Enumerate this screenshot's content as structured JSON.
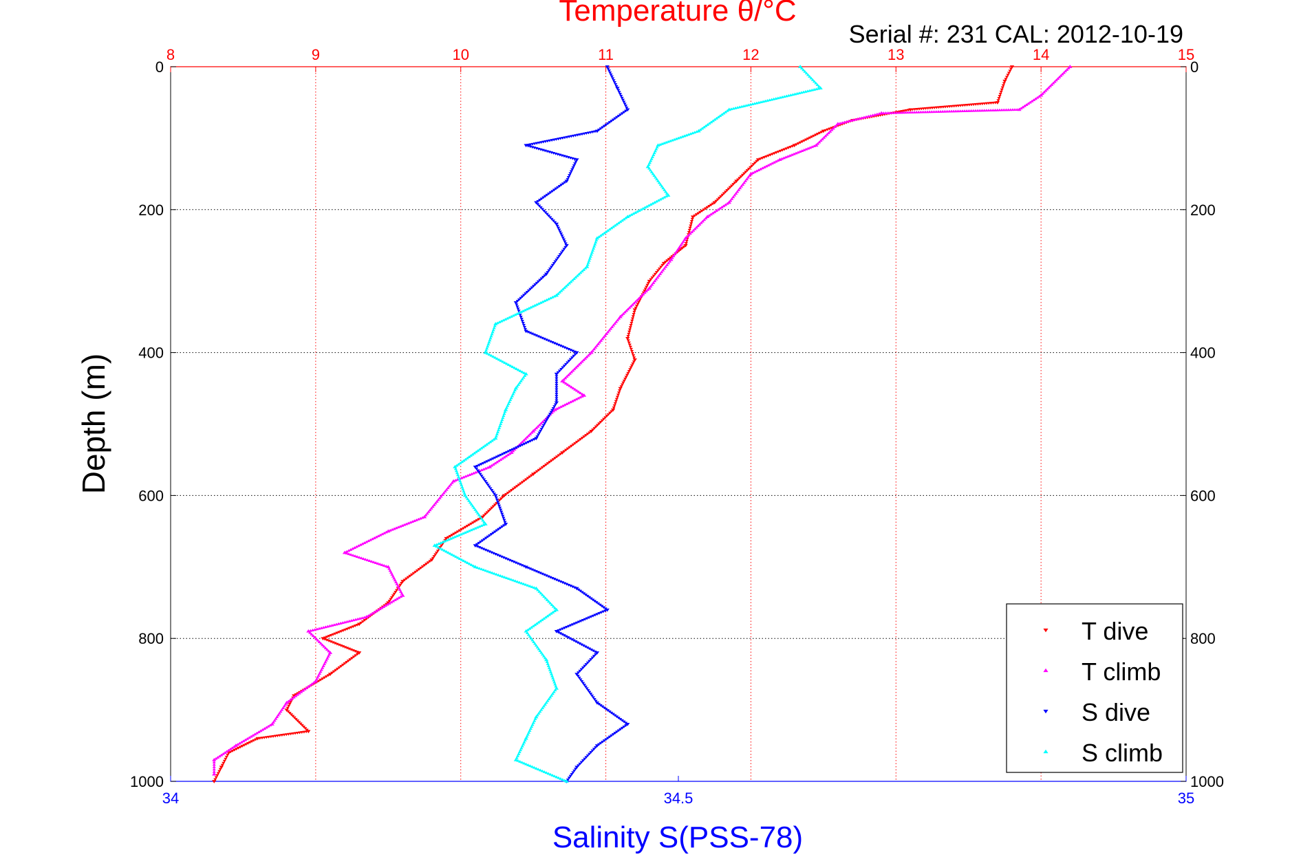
{
  "chart_data": {
    "type": "scatter",
    "title": "Temperature θ/°C",
    "subtitle": "Serial #: 231   CAL: 2012-10-19",
    "ylabel": "Depth (m)",
    "xlabel": "Salinity S(PSS-78)",
    "ylim": [
      0,
      1000
    ],
    "y_reversed": true,
    "top_axis": {
      "label": "Temperature θ/°C",
      "range": [
        8,
        15
      ],
      "ticks": [
        "8",
        "9",
        "10",
        "11",
        "12",
        "13",
        "14",
        "15"
      ],
      "color": "#ff0000"
    },
    "bottom_axis": {
      "label": "Salinity S(PSS-78)",
      "range": [
        34,
        35
      ],
      "ticks": [
        "34",
        "34.5",
        "35"
      ],
      "color": "#0000ff"
    },
    "left_ticks": [
      "0",
      "200",
      "400",
      "600",
      "800",
      "1000"
    ],
    "right_ticks": [
      "0",
      "200",
      "400",
      "600",
      "800",
      "1000"
    ],
    "grid": true,
    "legend_position": "bottom-right",
    "series": [
      {
        "name": "T dive",
        "axis": "temperature",
        "color": "#ff0000",
        "marker": "triangle-down",
        "points": [
          [
            13.8,
            0
          ],
          [
            13.75,
            20
          ],
          [
            13.7,
            50
          ],
          [
            13.1,
            60
          ],
          [
            12.7,
            75
          ],
          [
            12.5,
            90
          ],
          [
            12.3,
            110
          ],
          [
            12.05,
            130
          ],
          [
            11.9,
            160
          ],
          [
            11.75,
            190
          ],
          [
            11.6,
            210
          ],
          [
            11.55,
            250
          ],
          [
            11.4,
            275
          ],
          [
            11.3,
            300
          ],
          [
            11.2,
            340
          ],
          [
            11.15,
            380
          ],
          [
            11.2,
            410
          ],
          [
            11.1,
            450
          ],
          [
            11.05,
            480
          ],
          [
            10.9,
            510
          ],
          [
            10.7,
            540
          ],
          [
            10.5,
            570
          ],
          [
            10.3,
            600
          ],
          [
            10.15,
            630
          ],
          [
            9.9,
            660
          ],
          [
            9.8,
            690
          ],
          [
            9.6,
            720
          ],
          [
            9.5,
            750
          ],
          [
            9.3,
            780
          ],
          [
            9.05,
            800
          ],
          [
            9.3,
            820
          ],
          [
            9.1,
            850
          ],
          [
            8.85,
            880
          ],
          [
            8.8,
            900
          ],
          [
            8.95,
            930
          ],
          [
            8.6,
            940
          ],
          [
            8.4,
            960
          ],
          [
            8.35,
            980
          ],
          [
            8.3,
            1000
          ]
        ]
      },
      {
        "name": "T climb",
        "axis": "temperature",
        "color": "#ff00ff",
        "marker": "triangle-up",
        "points": [
          [
            14.2,
            0
          ],
          [
            14.0,
            40
          ],
          [
            13.85,
            60
          ],
          [
            12.9,
            65
          ],
          [
            12.6,
            80
          ],
          [
            12.45,
            110
          ],
          [
            12.2,
            130
          ],
          [
            12.0,
            150
          ],
          [
            11.85,
            190
          ],
          [
            11.7,
            210
          ],
          [
            11.55,
            240
          ],
          [
            11.45,
            270
          ],
          [
            11.3,
            310
          ],
          [
            11.1,
            350
          ],
          [
            10.9,
            400
          ],
          [
            10.7,
            440
          ],
          [
            10.85,
            460
          ],
          [
            10.65,
            480
          ],
          [
            10.5,
            510
          ],
          [
            10.35,
            540
          ],
          [
            10.2,
            560
          ],
          [
            9.95,
            580
          ],
          [
            9.75,
            630
          ],
          [
            9.5,
            650
          ],
          [
            9.2,
            680
          ],
          [
            9.5,
            700
          ],
          [
            9.6,
            740
          ],
          [
            9.35,
            770
          ],
          [
            8.95,
            790
          ],
          [
            9.1,
            820
          ],
          [
            9.0,
            860
          ],
          [
            8.8,
            890
          ],
          [
            8.7,
            920
          ],
          [
            8.45,
            950
          ],
          [
            8.3,
            970
          ],
          [
            8.3,
            990
          ]
        ]
      },
      {
        "name": "S dive",
        "axis": "salinity",
        "color": "#0000ff",
        "marker": "triangle-down",
        "points": [
          [
            34.43,
            0
          ],
          [
            34.44,
            30
          ],
          [
            34.45,
            60
          ],
          [
            34.42,
            90
          ],
          [
            34.35,
            110
          ],
          [
            34.4,
            130
          ],
          [
            34.39,
            160
          ],
          [
            34.36,
            190
          ],
          [
            34.38,
            220
          ],
          [
            34.39,
            250
          ],
          [
            34.37,
            290
          ],
          [
            34.34,
            330
          ],
          [
            34.35,
            370
          ],
          [
            34.4,
            400
          ],
          [
            34.38,
            430
          ],
          [
            34.38,
            470
          ],
          [
            34.36,
            520
          ],
          [
            34.3,
            560
          ],
          [
            34.32,
            600
          ],
          [
            34.33,
            640
          ],
          [
            34.3,
            670
          ],
          [
            34.35,
            700
          ],
          [
            34.4,
            730
          ],
          [
            34.43,
            760
          ],
          [
            34.38,
            790
          ],
          [
            34.42,
            820
          ],
          [
            34.4,
            850
          ],
          [
            34.42,
            890
          ],
          [
            34.45,
            920
          ],
          [
            34.42,
            950
          ],
          [
            34.4,
            980
          ],
          [
            34.39,
            1000
          ]
        ]
      },
      {
        "name": "S climb",
        "axis": "salinity",
        "color": "#00ffff",
        "marker": "triangle-up",
        "points": [
          [
            34.62,
            0
          ],
          [
            34.64,
            30
          ],
          [
            34.55,
            60
          ],
          [
            34.52,
            90
          ],
          [
            34.48,
            110
          ],
          [
            34.47,
            140
          ],
          [
            34.49,
            180
          ],
          [
            34.45,
            210
          ],
          [
            34.42,
            240
          ],
          [
            34.41,
            280
          ],
          [
            34.38,
            320
          ],
          [
            34.32,
            360
          ],
          [
            34.31,
            400
          ],
          [
            34.35,
            430
          ],
          [
            34.34,
            450
          ],
          [
            34.33,
            480
          ],
          [
            34.32,
            520
          ],
          [
            34.28,
            560
          ],
          [
            34.29,
            600
          ],
          [
            34.31,
            640
          ],
          [
            34.26,
            670
          ],
          [
            34.3,
            700
          ],
          [
            34.36,
            730
          ],
          [
            34.38,
            760
          ],
          [
            34.35,
            790
          ],
          [
            34.37,
            830
          ],
          [
            34.38,
            870
          ],
          [
            34.36,
            910
          ],
          [
            34.35,
            940
          ],
          [
            34.34,
            970
          ],
          [
            34.39,
            1000
          ]
        ]
      }
    ]
  }
}
